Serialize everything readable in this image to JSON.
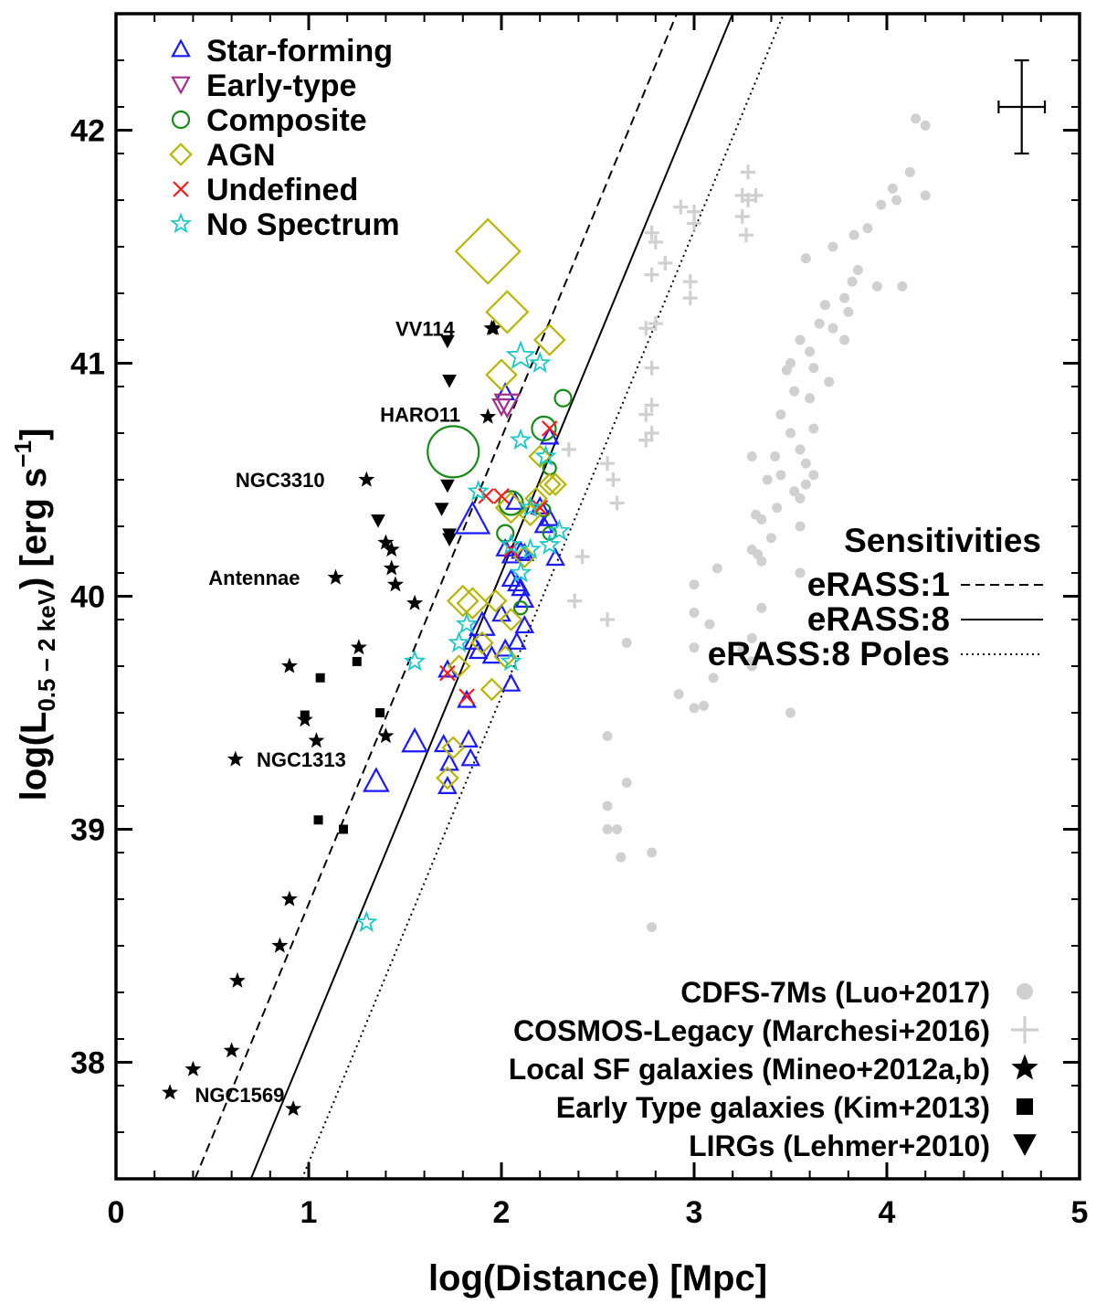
{
  "chart_data": {
    "type": "scatter",
    "title": "",
    "xlabel": "log(Distance) [Mpc]",
    "ylabel": {
      "prefix": "log(L",
      "subscript": "0.5 − 2 keV",
      "middle": ") [erg s",
      "superscript": "−1",
      "suffix": "]"
    },
    "xlim": [
      0,
      5
    ],
    "ylim": [
      37.5,
      42.5
    ],
    "x_ticks": [
      "0",
      "1",
      "2",
      "3",
      "4",
      "5"
    ],
    "y_ticks": [
      "38",
      "39",
      "40",
      "41",
      "42"
    ],
    "colors": {
      "star_forming": "#1a1aff",
      "early_type": "#a0308c",
      "composite": "#178a17",
      "agn": "#b8b400",
      "undefined": "#ff1a1a",
      "no_spectrum": "#1ac8c8",
      "background": "#d0d0d0",
      "reference": "#000000"
    },
    "legend_top": [
      {
        "label": "Star-forming",
        "marker": "triangle-up",
        "series": "star_forming"
      },
      {
        "label": "Early-type",
        "marker": "triangle-down",
        "series": "early_type"
      },
      {
        "label": "Composite",
        "marker": "circle",
        "series": "composite"
      },
      {
        "label": "AGN",
        "marker": "diamond",
        "series": "agn"
      },
      {
        "label": "Undefined",
        "marker": "cross",
        "series": "undefined"
      },
      {
        "label": "No Spectrum",
        "marker": "star",
        "series": "no_spectrum"
      }
    ],
    "sensitivities": {
      "title": "Sensitivities",
      "lines": [
        {
          "label": "eRASS:1",
          "style": "dashed",
          "intercept": 36.68,
          "slope": 2
        },
        {
          "label": "eRASS:8",
          "style": "solid",
          "intercept": 36.1,
          "slope": 2
        },
        {
          "label": "eRASS:8 Poles",
          "style": "dotted",
          "intercept": 35.57,
          "slope": 2
        }
      ]
    },
    "legend_bottom": [
      {
        "label": "CDFS-7Ms (Luo+2017)",
        "marker": "dot-gray"
      },
      {
        "label": "COSMOS-Legacy (Marchesi+2016)",
        "marker": "plus-gray"
      },
      {
        "label": "Local SF galaxies (Mineo+2012a,b)",
        "marker": "star-black"
      },
      {
        "label": "Early Type galaxies (Kim+2013)",
        "marker": "square-black"
      },
      {
        "label": "LIRGs (Lehmer+2010)",
        "marker": "triangle-down-black"
      }
    ],
    "annotations": [
      {
        "text": "VV114",
        "x": 1.45,
        "y": 41.15
      },
      {
        "text": "HARO11",
        "x": 1.37,
        "y": 40.78
      },
      {
        "text": "NGC3310",
        "x": 0.62,
        "y": 40.5
      },
      {
        "text": "Antennae",
        "x": 0.48,
        "y": 40.08
      },
      {
        "text": "NGC1313",
        "x": 0.73,
        "y": 39.3
      },
      {
        "text": "NGC1569",
        "x": 0.41,
        "y": 37.86
      }
    ],
    "error_bar": {
      "x": 4.7,
      "y": 42.1,
      "x_err": 0.12,
      "y_err": 0.2
    },
    "series": {
      "star_forming": [
        [
          1.35,
          39.2,
          "L"
        ],
        [
          1.55,
          39.37,
          "L"
        ],
        [
          1.7,
          39.36,
          "M"
        ],
        [
          1.72,
          39.18,
          "M"
        ],
        [
          1.73,
          39.28,
          "M"
        ],
        [
          1.84,
          39.3,
          "M"
        ],
        [
          1.83,
          39.38,
          "M"
        ],
        [
          1.82,
          39.55,
          "M"
        ],
        [
          1.88,
          39.76,
          "M"
        ],
        [
          1.95,
          39.74,
          "M"
        ],
        [
          1.85,
          39.8,
          "M"
        ],
        [
          1.9,
          39.87,
          "L"
        ],
        [
          2.0,
          39.92,
          "M"
        ],
        [
          2.05,
          39.62,
          "M"
        ],
        [
          2.02,
          39.77,
          "M"
        ],
        [
          2.08,
          39.8,
          "M"
        ],
        [
          2.12,
          39.87,
          "M"
        ],
        [
          2.12,
          39.98,
          "M"
        ],
        [
          2.08,
          40.05,
          "M"
        ],
        [
          2.05,
          40.07,
          "M"
        ],
        [
          2.1,
          40.03,
          "M"
        ],
        [
          2.02,
          40.2,
          "M"
        ],
        [
          2.05,
          40.17,
          "M"
        ],
        [
          2.1,
          40.19,
          "M"
        ],
        [
          2.12,
          40.18,
          "M"
        ],
        [
          2.22,
          40.3,
          "M"
        ],
        [
          2.25,
          40.33,
          "M"
        ],
        [
          2.28,
          40.16,
          "M"
        ],
        [
          2.2,
          40.38,
          "M"
        ],
        [
          2.25,
          40.68,
          "M"
        ],
        [
          1.85,
          40.32,
          "XL"
        ],
        [
          2.02,
          40.87,
          "M"
        ],
        [
          1.72,
          39.68,
          "M"
        ],
        [
          2.07,
          40.4,
          "M"
        ]
      ],
      "early_type": [
        [
          2.03,
          40.83,
          "L"
        ],
        [
          2.0,
          40.82,
          "M"
        ]
      ],
      "composite": [
        [
          1.75,
          40.62,
          "XXL"
        ],
        [
          2.22,
          40.72,
          "L"
        ],
        [
          2.05,
          40.4,
          "L"
        ],
        [
          2.02,
          40.27,
          "M"
        ],
        [
          2.25,
          40.55,
          "S"
        ],
        [
          2.32,
          40.85,
          "M"
        ],
        [
          2.1,
          39.95,
          "S"
        ],
        [
          2.22,
          40.37,
          "S"
        ],
        [
          2.25,
          40.27,
          "S"
        ]
      ],
      "agn": [
        [
          1.93,
          41.48,
          "XXL"
        ],
        [
          2.03,
          41.22,
          "XL"
        ],
        [
          2.25,
          41.1,
          "L"
        ],
        [
          2.0,
          40.95,
          "L"
        ],
        [
          1.8,
          39.98,
          "L"
        ],
        [
          1.85,
          39.97,
          "L"
        ],
        [
          1.97,
          39.98,
          "M"
        ],
        [
          1.78,
          39.7,
          "M"
        ],
        [
          1.75,
          39.35,
          "M"
        ],
        [
          1.72,
          39.22,
          "M"
        ],
        [
          1.9,
          39.8,
          "M"
        ],
        [
          2.02,
          39.74,
          "M"
        ],
        [
          2.05,
          39.9,
          "M"
        ],
        [
          2.12,
          40.17,
          "M"
        ],
        [
          2.18,
          40.42,
          "M"
        ],
        [
          2.25,
          40.48,
          "M"
        ],
        [
          2.28,
          40.48,
          "M"
        ],
        [
          2.2,
          40.6,
          "M"
        ],
        [
          2.05,
          40.38,
          "L"
        ],
        [
          2.15,
          40.35,
          "M"
        ],
        [
          1.95,
          39.6,
          "M"
        ]
      ],
      "undefined": [
        [
          1.72,
          39.67
        ],
        [
          1.82,
          39.57
        ],
        [
          1.92,
          40.43
        ],
        [
          2.25,
          40.72
        ],
        [
          2.2,
          40.38
        ],
        [
          2.05,
          40.2
        ],
        [
          2.0,
          40.43
        ]
      ],
      "no_spectrum": [
        [
          2.1,
          41.03,
          "L"
        ],
        [
          2.2,
          41.0,
          "M"
        ],
        [
          2.1,
          40.67,
          "M"
        ],
        [
          2.23,
          40.6,
          "M"
        ],
        [
          1.88,
          40.45,
          "M"
        ],
        [
          1.55,
          39.72,
          "M"
        ],
        [
          1.78,
          39.8,
          "M"
        ],
        [
          1.82,
          39.88,
          "M"
        ],
        [
          1.3,
          38.6,
          "M"
        ],
        [
          2.05,
          39.72,
          "M"
        ],
        [
          2.05,
          40.22,
          "M"
        ],
        [
          2.15,
          40.38,
          "M"
        ],
        [
          2.25,
          40.22,
          "M"
        ],
        [
          2.3,
          40.28,
          "M"
        ],
        [
          2.1,
          40.1,
          "M"
        ],
        [
          2.15,
          40.2,
          "M"
        ]
      ],
      "local_sf": [
        [
          1.95,
          41.15
        ],
        [
          1.96,
          41.15
        ],
        [
          1.93,
          40.77
        ],
        [
          1.3,
          40.5
        ],
        [
          1.14,
          40.08
        ],
        [
          1.45,
          40.05
        ],
        [
          1.43,
          40.12
        ],
        [
          1.43,
          40.2
        ],
        [
          1.4,
          40.23
        ],
        [
          1.55,
          39.97
        ],
        [
          1.26,
          39.78
        ],
        [
          0.9,
          39.7
        ],
        [
          0.98,
          39.47
        ],
        [
          1.04,
          39.38
        ],
        [
          1.4,
          39.4
        ],
        [
          0.62,
          39.3
        ],
        [
          0.9,
          38.7
        ],
        [
          0.85,
          38.5
        ],
        [
          0.63,
          38.35
        ],
        [
          0.6,
          38.05
        ],
        [
          0.4,
          37.97
        ],
        [
          0.28,
          37.87
        ],
        [
          0.92,
          37.8
        ]
      ],
      "early_types": [
        [
          1.06,
          39.65
        ],
        [
          1.25,
          39.72
        ],
        [
          0.98,
          39.49
        ],
        [
          1.37,
          39.5
        ],
        [
          1.05,
          39.04
        ],
        [
          1.18,
          39.0
        ]
      ],
      "lirgs": [
        [
          1.72,
          41.1
        ],
        [
          1.73,
          40.93
        ],
        [
          1.72,
          40.48
        ],
        [
          1.69,
          40.38
        ],
        [
          1.36,
          40.33
        ],
        [
          1.73,
          40.27
        ],
        [
          1.73,
          40.25
        ]
      ],
      "cosmos": [
        [
          3.28,
          41.82
        ],
        [
          3.25,
          41.72
        ],
        [
          3.28,
          41.7
        ],
        [
          3.25,
          41.63
        ],
        [
          3.27,
          41.55
        ],
        [
          2.93,
          41.67
        ],
        [
          3.0,
          41.6
        ],
        [
          2.8,
          41.52
        ],
        [
          2.85,
          41.43
        ],
        [
          2.78,
          41.38
        ],
        [
          2.98,
          41.35
        ],
        [
          2.98,
          41.28
        ],
        [
          2.8,
          41.17
        ],
        [
          2.75,
          41.15
        ],
        [
          2.78,
          40.98
        ],
        [
          2.78,
          40.82
        ],
        [
          2.75,
          40.78
        ],
        [
          2.75,
          40.67
        ],
        [
          2.78,
          40.7
        ],
        [
          2.35,
          40.63
        ],
        [
          2.42,
          40.17
        ],
        [
          2.38,
          39.98
        ],
        [
          2.55,
          40.57
        ],
        [
          2.58,
          40.5
        ],
        [
          2.6,
          40.4
        ],
        [
          2.55,
          39.9
        ],
        [
          3.0,
          41.65
        ],
        [
          2.78,
          41.56
        ],
        [
          3.32,
          41.72
        ]
      ],
      "cdfs": [
        [
          4.15,
          42.05
        ],
        [
          4.2,
          42.02
        ],
        [
          4.12,
          41.82
        ],
        [
          4.03,
          41.75
        ],
        [
          4.05,
          41.7
        ],
        [
          4.2,
          41.72
        ],
        [
          3.97,
          41.68
        ],
        [
          3.9,
          41.58
        ],
        [
          3.83,
          41.55
        ],
        [
          3.72,
          41.5
        ],
        [
          3.58,
          41.45
        ],
        [
          3.85,
          41.4
        ],
        [
          3.82,
          41.35
        ],
        [
          3.95,
          41.33
        ],
        [
          4.08,
          41.33
        ],
        [
          3.78,
          41.28
        ],
        [
          3.68,
          41.25
        ],
        [
          3.8,
          41.22
        ],
        [
          3.65,
          41.17
        ],
        [
          3.55,
          41.1
        ],
        [
          3.6,
          41.05
        ],
        [
          3.62,
          40.98
        ],
        [
          3.48,
          40.97
        ],
        [
          3.7,
          40.92
        ],
        [
          3.52,
          40.88
        ],
        [
          3.6,
          40.85
        ],
        [
          3.45,
          40.78
        ],
        [
          3.62,
          40.72
        ],
        [
          3.5,
          40.7
        ],
        [
          3.55,
          40.63
        ],
        [
          3.42,
          40.6
        ],
        [
          3.58,
          40.57
        ],
        [
          3.45,
          40.52
        ],
        [
          3.38,
          40.5
        ],
        [
          3.52,
          40.45
        ],
        [
          3.55,
          40.42
        ],
        [
          3.43,
          40.38
        ],
        [
          3.32,
          40.35
        ],
        [
          3.35,
          40.33
        ],
        [
          3.55,
          40.3
        ],
        [
          3.4,
          40.25
        ],
        [
          3.3,
          40.2
        ],
        [
          3.33,
          40.18
        ],
        [
          3.35,
          40.15
        ],
        [
          3.12,
          40.12
        ],
        [
          3.0,
          40.05
        ],
        [
          3.0,
          39.93
        ],
        [
          3.08,
          39.88
        ],
        [
          3.0,
          39.78
        ],
        [
          3.3,
          39.82
        ],
        [
          3.3,
          39.72
        ],
        [
          3.5,
          39.5
        ],
        [
          3.25,
          39.77
        ],
        [
          3.3,
          39.7
        ],
        [
          3.1,
          39.65
        ],
        [
          3.0,
          39.52
        ],
        [
          2.92,
          39.58
        ],
        [
          3.05,
          39.53
        ],
        [
          2.65,
          39.8
        ],
        [
          2.55,
          39.4
        ],
        [
          2.65,
          39.2
        ],
        [
          2.55,
          39.1
        ],
        [
          2.55,
          39.0
        ],
        [
          2.62,
          38.88
        ],
        [
          2.78,
          38.9
        ],
        [
          2.78,
          38.58
        ],
        [
          2.6,
          39.0
        ],
        [
          3.72,
          41.15
        ],
        [
          3.78,
          41.1
        ],
        [
          3.5,
          41.0
        ],
        [
          3.62,
          40.52
        ],
        [
          3.58,
          40.48
        ],
        [
          3.3,
          40.6
        ],
        [
          3.55,
          40.1
        ],
        [
          3.35,
          39.95
        ]
      ]
    }
  }
}
